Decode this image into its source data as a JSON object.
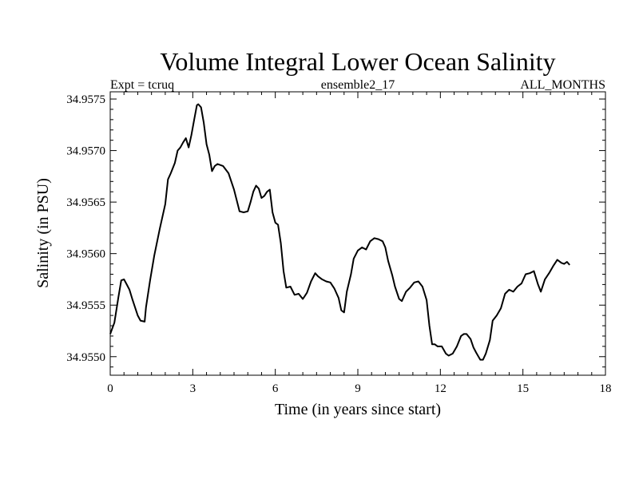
{
  "chart_data": {
    "type": "line",
    "title": "Volume Integral Lower Ocean Salinity",
    "subtitle_left": "Expt = tcruq",
    "subtitle_center": "ensemble2_17",
    "subtitle_right": "ALL_MONTHS",
    "xlabel": "Time (in years since start)",
    "ylabel": "Salinity (in PSU)",
    "xlim": [
      0,
      18
    ],
    "ylim": [
      34.95482,
      34.95757
    ],
    "xticks": [
      0,
      3,
      6,
      9,
      12,
      15,
      18
    ],
    "xtick_labels": [
      "0",
      "3",
      "6",
      "9",
      "12",
      "15",
      "18"
    ],
    "yticks": [
      34.955,
      34.9555,
      34.956,
      34.9565,
      34.957,
      34.9575
    ],
    "ytick_labels": [
      "34.9550",
      "34.9555",
      "34.9560",
      "34.9565",
      "34.9570",
      "34.9575"
    ],
    "grid": false,
    "series": [
      {
        "name": "Salinity",
        "x": [
          0.0,
          0.15,
          0.3,
          0.4,
          0.5,
          0.6,
          0.7,
          0.8,
          0.9,
          1.0,
          1.1,
          1.25,
          1.3,
          1.45,
          1.6,
          1.8,
          2.0,
          2.1,
          2.2,
          2.35,
          2.45,
          2.55,
          2.65,
          2.75,
          2.85,
          2.95,
          3.05,
          3.15,
          3.2,
          3.3,
          3.4,
          3.5,
          3.6,
          3.7,
          3.8,
          3.9,
          4.1,
          4.3,
          4.5,
          4.7,
          4.85,
          5.0,
          5.1,
          5.2,
          5.3,
          5.4,
          5.5,
          5.6,
          5.7,
          5.8,
          5.9,
          6.0,
          6.1,
          6.2,
          6.3,
          6.4,
          6.55,
          6.7,
          6.85,
          7.0,
          7.15,
          7.3,
          7.45,
          7.55,
          7.7,
          7.85,
          8.0,
          8.15,
          8.3,
          8.4,
          8.5,
          8.6,
          8.75,
          8.85,
          9.0,
          9.15,
          9.3,
          9.45,
          9.6,
          9.75,
          9.9,
          10.0,
          10.1,
          10.25,
          10.35,
          10.5,
          10.6,
          10.75,
          10.9,
          11.05,
          11.2,
          11.35,
          11.5,
          11.6,
          11.7,
          11.8,
          11.9,
          12.05,
          12.2,
          12.3,
          12.45,
          12.6,
          12.75,
          12.85,
          12.95,
          13.1,
          13.2,
          13.3,
          13.45,
          13.55,
          13.65,
          13.8,
          13.9,
          14.05,
          14.2,
          14.35,
          14.5,
          14.65,
          14.8,
          14.95,
          15.1,
          15.25,
          15.4,
          15.55,
          15.65,
          15.8,
          15.95,
          16.1,
          16.25,
          16.4,
          16.5,
          16.6,
          16.7
        ],
        "y": [
          34.95522,
          34.95533,
          34.95558,
          34.95574,
          34.95575,
          34.9557,
          34.95565,
          34.95556,
          34.95548,
          34.9554,
          34.95535,
          34.95534,
          34.95548,
          34.95574,
          34.95598,
          34.95624,
          34.95648,
          34.95672,
          34.95678,
          34.95688,
          34.957,
          34.95703,
          34.95708,
          34.95712,
          34.95703,
          34.95715,
          34.9573,
          34.95744,
          34.95745,
          34.95742,
          34.95727,
          34.95706,
          34.95696,
          34.9568,
          34.95685,
          34.95687,
          34.95685,
          34.95678,
          34.95662,
          34.95641,
          34.9564,
          34.95641,
          34.9565,
          34.9566,
          34.95666,
          34.95663,
          34.95654,
          34.95656,
          34.9566,
          34.95662,
          34.9564,
          34.9563,
          34.95628,
          34.9561,
          34.95583,
          34.95567,
          34.95568,
          34.9556,
          34.95561,
          34.95556,
          34.95562,
          34.95573,
          34.95581,
          34.95578,
          34.95575,
          34.95573,
          34.95572,
          34.95566,
          34.95557,
          34.95545,
          34.95543,
          34.95563,
          34.9558,
          34.95595,
          34.95603,
          34.95606,
          34.95604,
          34.95612,
          34.95615,
          34.95614,
          34.95612,
          34.95606,
          34.95593,
          34.95579,
          34.95568,
          34.95556,
          34.95554,
          34.95563,
          34.95567,
          34.95572,
          34.95573,
          34.95568,
          34.95555,
          34.9553,
          34.95512,
          34.95512,
          34.9551,
          34.9551,
          34.95503,
          34.95501,
          34.95503,
          34.9551,
          34.9552,
          34.95522,
          34.95522,
          34.95517,
          34.95509,
          34.95504,
          34.95497,
          34.95497,
          34.95503,
          34.95516,
          34.95535,
          34.9554,
          34.95547,
          34.95561,
          34.95565,
          34.95563,
          34.95568,
          34.95571,
          34.9558,
          34.95581,
          34.95583,
          34.9557,
          34.95563,
          34.95575,
          34.95581,
          34.95588,
          34.95594,
          34.95591,
          34.9559,
          34.95592,
          34.95589
        ]
      }
    ]
  }
}
